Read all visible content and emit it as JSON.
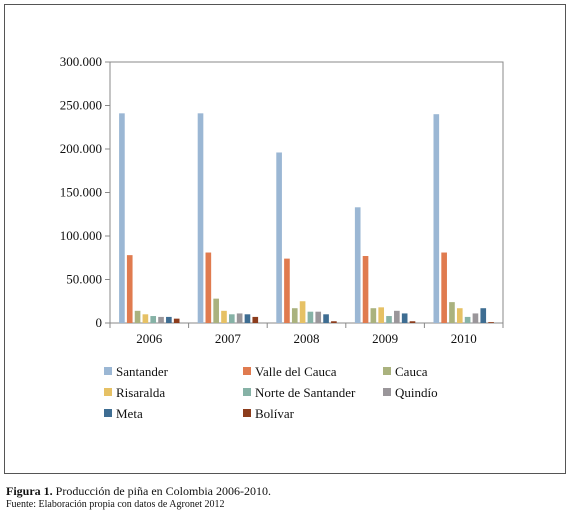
{
  "figure": {
    "label": "Figura 1.",
    "title": "Producción de piña en Colombia 2006-2010.",
    "source": "Fuente: Elaboración propia con datos de Agronet 2012"
  },
  "chart_data": {
    "type": "bar",
    "categories": [
      "2006",
      "2007",
      "2008",
      "2009",
      "2010"
    ],
    "ylim": [
      0,
      300000
    ],
    "yticks": [
      "0",
      "50.000",
      "100.000",
      "150.000",
      "200.000",
      "250.000",
      "300.000"
    ],
    "grid": false,
    "legend_position": "bottom",
    "series": [
      {
        "name": "Santander",
        "color": "#9bb7d4",
        "values": [
          241000,
          241000,
          196000,
          133000,
          240000
        ]
      },
      {
        "name": "Valle del Cauca",
        "color": "#e07b4f",
        "values": [
          78000,
          81000,
          74000,
          77000,
          81000
        ]
      },
      {
        "name": "Cauca",
        "color": "#aab27e",
        "values": [
          14000,
          28000,
          17000,
          17000,
          24000
        ]
      },
      {
        "name": "Risaralda",
        "color": "#e6c165",
        "values": [
          10000,
          14000,
          25000,
          18000,
          17000
        ]
      },
      {
        "name": "Norte de Santander",
        "color": "#86b2a6",
        "values": [
          8000,
          10000,
          13000,
          8000,
          7000
        ]
      },
      {
        "name": "Quindío",
        "color": "#9a969a",
        "values": [
          7000,
          11000,
          13000,
          14000,
          11000
        ]
      },
      {
        "name": "Meta",
        "color": "#3e6d92",
        "values": [
          7000,
          10000,
          10000,
          11000,
          17000
        ]
      },
      {
        "name": "Bolívar",
        "color": "#8c3c1c",
        "values": [
          5000,
          7000,
          2000,
          2000,
          1000
        ]
      }
    ]
  }
}
